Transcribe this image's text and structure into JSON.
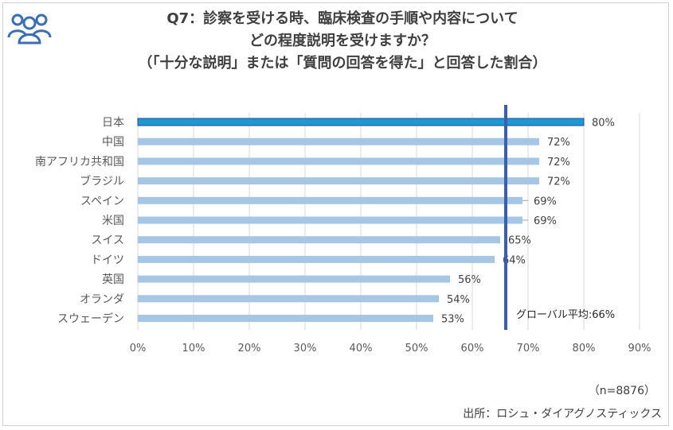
{
  "title": {
    "line1": "Q7：診察を受ける時、臨床検査の手順や内容について",
    "line2": "どの程度説明を受けますか？",
    "line3": "（「十分な説明」または「質問の回答を得た」と回答した割合）"
  },
  "icon": "people-group-icon",
  "colors": {
    "highlight_bar": "#1f97d4",
    "bar": "#a6c6e6",
    "avg_line": "#3a5fac",
    "grid": "#d9d9d9"
  },
  "chart_data": {
    "type": "bar",
    "orientation": "horizontal",
    "categories": [
      "日本",
      "中国",
      "南アフリカ共和国",
      "ブラジル",
      "スペイン",
      "米国",
      "スイス",
      "ドイツ",
      "英国",
      "オランダ",
      "スウェーデン"
    ],
    "values": [
      80,
      72,
      72,
      72,
      69,
      69,
      65,
      64,
      56,
      54,
      53
    ],
    "value_labels": [
      "80%",
      "72%",
      "72%",
      "72%",
      "69%",
      "69%",
      "65%",
      "64%",
      "56%",
      "54%",
      "53%"
    ],
    "highlight_index": 0,
    "xlim": [
      0,
      90
    ],
    "x_ticks": [
      "0%",
      "10%",
      "20%",
      "30%",
      "40%",
      "50%",
      "60%",
      "70%",
      "80%",
      "90%"
    ],
    "grid": true,
    "reference_line": {
      "value": 66,
      "label": "グローバル平均:66%"
    }
  },
  "footnote": {
    "sample": "（n=8876）",
    "source": "出所：ロシュ・ダイアグノスティックス"
  }
}
